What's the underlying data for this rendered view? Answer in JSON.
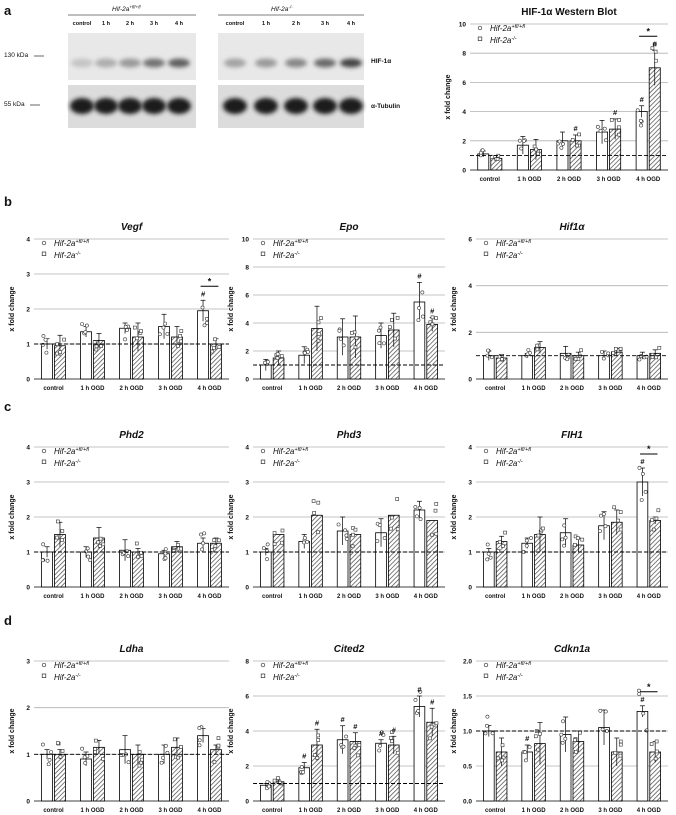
{
  "panel_labels": [
    "a",
    "b",
    "c",
    "d"
  ],
  "western_blot": {
    "groups": [
      {
        "label_gene": "Hif-2a",
        "label_sup": "+fl/+fl",
        "lanes": [
          "control",
          "1 h",
          "2 h",
          "3 h",
          "4 h"
        ]
      },
      {
        "label_gene": "Hif-2a",
        "label_sup": "-/-",
        "lanes": [
          "control",
          "1 h",
          "2 h",
          "3 h",
          "4 h"
        ]
      }
    ],
    "markers": [
      "130 kDa",
      "55 kDa"
    ],
    "bands": [
      "HIF-1α",
      "α-Tubulin"
    ],
    "hif_intensity": [
      [
        0.12,
        0.25,
        0.35,
        0.55,
        0.65
      ],
      [
        0.3,
        0.35,
        0.45,
        0.6,
        0.8
      ]
    ]
  },
  "legend": {
    "series1_gene": "Hif-2a",
    "series1_sup": "+fl/+fl",
    "series2_gene": "Hif-2a",
    "series2_sup": "-/-"
  },
  "colors": {
    "bar_fill": "#ffffff",
    "bar_stroke": "#000000",
    "hatch": "#555555",
    "grid": "#b0b0b0"
  },
  "chart_data": [
    {
      "id": "wb",
      "type": "bar",
      "title": "HIF-1α Western Blot",
      "title_italic": false,
      "ylabel": "x fold change",
      "ylim": [
        0,
        10
      ],
      "yticks": [
        0,
        2,
        4,
        6,
        8,
        10
      ],
      "categories": [
        "control",
        "1 h OGD",
        "2 h OGD",
        "3 h OGD",
        "4 h OGD"
      ],
      "series": [
        {
          "values": [
            1.1,
            1.7,
            2.0,
            2.6,
            4.0
          ],
          "err": [
            0.2,
            0.6,
            0.6,
            0.8,
            0.4
          ]
        },
        {
          "values": [
            0.8,
            1.4,
            2.0,
            2.8,
            7.0
          ],
          "err": [
            0.2,
            0.7,
            0.4,
            0.7,
            1.2
          ]
        }
      ],
      "marks": [
        {
          "cat": 2,
          "s": 1,
          "t": "#"
        },
        {
          "cat": 3,
          "s": 1,
          "t": "#"
        },
        {
          "cat": 4,
          "s": 0,
          "t": "#"
        },
        {
          "cat": 4,
          "s": 1,
          "t": "#"
        }
      ],
      "sig": [
        {
          "cat": 4,
          "t": "*"
        }
      ],
      "baseline": 1
    },
    {
      "id": "vegf",
      "type": "bar",
      "title": "Vegf",
      "title_italic": true,
      "ylabel": "x fold change",
      "ylim": [
        0,
        4
      ],
      "yticks": [
        0,
        1,
        2,
        3,
        4
      ],
      "categories": [
        "control",
        "1 h OGD",
        "2 h OGD",
        "3 h OGD",
        "4 h OGD"
      ],
      "series": [
        {
          "values": [
            1.0,
            1.35,
            1.45,
            1.5,
            1.95
          ],
          "err": [
            0.15,
            0.15,
            0.15,
            0.35,
            0.3
          ]
        },
        {
          "values": [
            0.95,
            1.1,
            1.2,
            1.2,
            1.0
          ],
          "err": [
            0.3,
            0.2,
            0.4,
            0.3,
            0.15
          ]
        }
      ],
      "marks": [
        {
          "cat": 4,
          "s": 0,
          "t": "#"
        }
      ],
      "sig": [
        {
          "cat": 4,
          "t": "*"
        }
      ],
      "baseline": 1
    },
    {
      "id": "epo",
      "type": "bar",
      "title": "Epo",
      "title_italic": true,
      "ylabel": "x fold change",
      "ylim": [
        0,
        10
      ],
      "yticks": [
        0,
        2,
        4,
        6,
        8,
        10
      ],
      "categories": [
        "control",
        "1 h OGD",
        "2 h OGD",
        "3 h OGD",
        "4 h OGD"
      ],
      "series": [
        {
          "values": [
            1.0,
            1.7,
            3.0,
            3.1,
            5.5
          ],
          "err": [
            0.4,
            0.6,
            1.3,
            0.9,
            1.4
          ]
        },
        {
          "values": [
            1.5,
            3.6,
            3.0,
            3.5,
            3.9
          ],
          "err": [
            0.5,
            1.6,
            1.5,
            1.2,
            0.5
          ]
        }
      ],
      "marks": [
        {
          "cat": 4,
          "s": 0,
          "t": "#"
        },
        {
          "cat": 4,
          "s": 1,
          "t": "#"
        }
      ],
      "sig": [],
      "baseline": 1
    },
    {
      "id": "hif1a",
      "type": "bar",
      "title": "Hif1α",
      "title_italic": true,
      "ylabel": "x fold change",
      "ylim": [
        0,
        6
      ],
      "yticks": [
        0,
        2,
        4,
        6
      ],
      "categories": [
        "control",
        "1 h OGD",
        "2 h OGD",
        "3 h OGD",
        "4 h OGD"
      ],
      "series": [
        {
          "values": [
            1.0,
            1.0,
            1.1,
            1.0,
            1.0
          ],
          "err": [
            0.2,
            0.1,
            0.3,
            0.2,
            0.15
          ]
        },
        {
          "values": [
            0.9,
            1.35,
            1.0,
            1.15,
            1.1
          ],
          "err": [
            0.15,
            0.25,
            0.15,
            0.15,
            0.15
          ]
        }
      ],
      "marks": [],
      "sig": [],
      "baseline": 1
    },
    {
      "id": "phd2",
      "type": "bar",
      "title": "Phd2",
      "title_italic": true,
      "ylabel": "x fold change",
      "ylim": [
        0,
        4
      ],
      "yticks": [
        0,
        1,
        2,
        3,
        4
      ],
      "categories": [
        "control",
        "1 h OGD",
        "2 h OGD",
        "3 h OGD",
        "4 h OGD"
      ],
      "series": [
        {
          "values": [
            1.0,
            1.0,
            1.05,
            0.95,
            1.25
          ],
          "err": [
            0.15,
            0.15,
            0.3,
            0.1,
            0.15
          ]
        },
        {
          "values": [
            1.5,
            1.4,
            1.0,
            1.15,
            1.25
          ],
          "err": [
            0.35,
            0.3,
            0.1,
            0.15,
            0.15
          ]
        }
      ],
      "marks": [],
      "sig": [],
      "baseline": 1
    },
    {
      "id": "phd3",
      "type": "bar",
      "title": "Phd3",
      "title_italic": true,
      "ylabel": "x fold change",
      "ylim": [
        0,
        4
      ],
      "yticks": [
        0,
        1,
        2,
        3,
        4
      ],
      "categories": [
        "control",
        "1 h OGD",
        "2 h OGD",
        "3 h OGD",
        "4 h OGD"
      ],
      "series": [
        {
          "values": [
            1.0,
            1.3,
            1.6,
            1.55,
            2.2
          ],
          "err": [
            0.1,
            0.2,
            0.4,
            0.4,
            0.25
          ]
        },
        {
          "values": [
            1.5,
            2.05,
            1.5,
            2.05,
            1.9
          ]
        }
      ],
      "marks": [],
      "sig": [],
      "baseline": 1
    },
    {
      "id": "fih1",
      "type": "bar",
      "title": "FIH1",
      "title_italic": true,
      "ylabel": "x fold change",
      "ylim": [
        0,
        4
      ],
      "yticks": [
        0,
        1,
        2,
        3,
        4
      ],
      "categories": [
        "control",
        "1 h OGD",
        "2 h OGD",
        "3 h OGD",
        "4 h OGD"
      ],
      "series": [
        {
          "values": [
            1.0,
            1.25,
            1.55,
            1.75,
            3.0
          ],
          "err": [
            0.1,
            0.15,
            0.4,
            0.4,
            0.4
          ]
        },
        {
          "values": [
            1.3,
            1.5,
            1.2,
            1.85,
            1.9
          ],
          "err": [
            0.15,
            0.5,
            0.2,
            0.35,
            0.1
          ]
        }
      ],
      "marks": [
        {
          "cat": 4,
          "s": 0,
          "t": "#"
        }
      ],
      "sig": [
        {
          "cat": 4,
          "t": "*"
        }
      ],
      "baseline": 1
    },
    {
      "id": "ldha",
      "type": "bar",
      "title": "Ldha",
      "title_italic": true,
      "ylabel": "x fold change",
      "ylim": [
        0,
        3
      ],
      "yticks": [
        0,
        1,
        2,
        3
      ],
      "categories": [
        "control",
        "1 h OGD",
        "2 h OGD",
        "3 h OGD",
        "4 h OGD"
      ],
      "series": [
        {
          "values": [
            1.0,
            0.9,
            1.1,
            1.0,
            1.4
          ],
          "err": [
            0.1,
            0.15,
            0.3,
            0.2,
            0.15
          ]
        },
        {
          "values": [
            1.0,
            1.15,
            1.0,
            1.15,
            1.1
          ],
          "err": [
            0.1,
            0.15,
            0.2,
            0.2,
            0.1
          ]
        }
      ],
      "marks": [],
      "sig": [],
      "baseline": 1
    },
    {
      "id": "cited2",
      "type": "bar",
      "title": "Cited2",
      "title_italic": true,
      "ylabel": "x fold change",
      "ylim": [
        0,
        8
      ],
      "yticks": [
        0,
        2,
        4,
        6,
        8
      ],
      "categories": [
        "control",
        "1 h OGD",
        "2 h OGD",
        "3 h OGD",
        "4 h OGD"
      ],
      "series": [
        {
          "values": [
            0.9,
            1.9,
            3.5,
            3.3,
            5.4
          ],
          "err": [
            0.1,
            0.3,
            0.8,
            0.2,
            0.6
          ]
        },
        {
          "values": [
            1.1,
            3.2,
            3.4,
            3.2,
            4.5
          ],
          "err": [
            0.1,
            0.9,
            0.5,
            0.5,
            0.8
          ]
        }
      ],
      "marks": [
        {
          "cat": 1,
          "s": 0,
          "t": "#"
        },
        {
          "cat": 1,
          "s": 1,
          "t": "#"
        },
        {
          "cat": 2,
          "s": 0,
          "t": "#"
        },
        {
          "cat": 2,
          "s": 1,
          "t": "#"
        },
        {
          "cat": 3,
          "s": 0,
          "t": "#"
        },
        {
          "cat": 3,
          "s": 1,
          "t": "#"
        },
        {
          "cat": 4,
          "s": 0,
          "t": "#"
        },
        {
          "cat": 4,
          "s": 1,
          "t": "#"
        }
      ],
      "sig": [],
      "baseline": 1
    },
    {
      "id": "cdkn1a",
      "type": "bar",
      "title": "Cdkn1a",
      "title_italic": true,
      "ylabel": "x fold change",
      "ylim": [
        0,
        2
      ],
      "yticks": [
        "0.0",
        "0.5",
        "1.0",
        "1.5",
        "2.0"
      ],
      "categories": [
        "control",
        "1 h OGD",
        "2 h OGD",
        "3 h OGD",
        "4 h OGD"
      ],
      "series": [
        {
          "values": [
            1.0,
            0.7,
            0.95,
            1.05,
            1.28
          ],
          "err": [
            0.08,
            0.1,
            0.25,
            0.25,
            0.08
          ]
        },
        {
          "values": [
            0.7,
            0.82,
            0.85,
            0.7,
            0.7
          ],
          "err": [
            0.2,
            0.3,
            0.15,
            0.2,
            0.15
          ]
        }
      ],
      "marks": [
        {
          "cat": 1,
          "s": 0,
          "t": "#"
        },
        {
          "cat": 4,
          "s": 0,
          "t": "#"
        }
      ],
      "sig": [
        {
          "cat": 4,
          "t": "*"
        }
      ],
      "baseline": 1
    }
  ]
}
